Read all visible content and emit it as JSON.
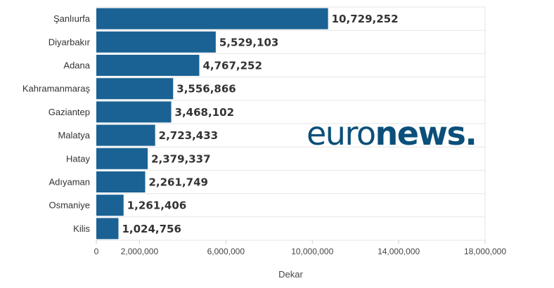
{
  "chart_data": {
    "type": "bar",
    "orientation": "horizontal",
    "categories": [
      "Şanlıurfa",
      "Diyarbakır",
      "Adana",
      "Kahramanmaraş",
      "Gaziantep",
      "Malatya",
      "Hatay",
      "Adıyaman",
      "Osmaniye",
      "Kilis"
    ],
    "values": [
      10729252,
      5529103,
      4767252,
      3556866,
      3468102,
      2723433,
      2379337,
      2261749,
      1261406,
      1024756
    ],
    "value_labels": [
      "10,729,252",
      "5,529,103",
      "4,767,252",
      "3,556,866",
      "3,468,102",
      "2,723,433",
      "2,379,337",
      "2,261,749",
      "1,261,406",
      "1,024,756"
    ],
    "xlabel": "Dekar",
    "ylabel": "",
    "xlim": [
      0,
      18000000
    ],
    "ticks": [
      0,
      2000000,
      6000000,
      10000000,
      14000000,
      18000000
    ],
    "tick_labels": [
      "0",
      "2,000,000",
      "6,000,000",
      "10,000,000",
      "14,000,000",
      "18,000,000"
    ],
    "grid": true,
    "bar_color": "#1a6293"
  },
  "logo": {
    "part1": "euro",
    "part2": "news",
    "part3": ".",
    "color": "#0b4f7a"
  }
}
